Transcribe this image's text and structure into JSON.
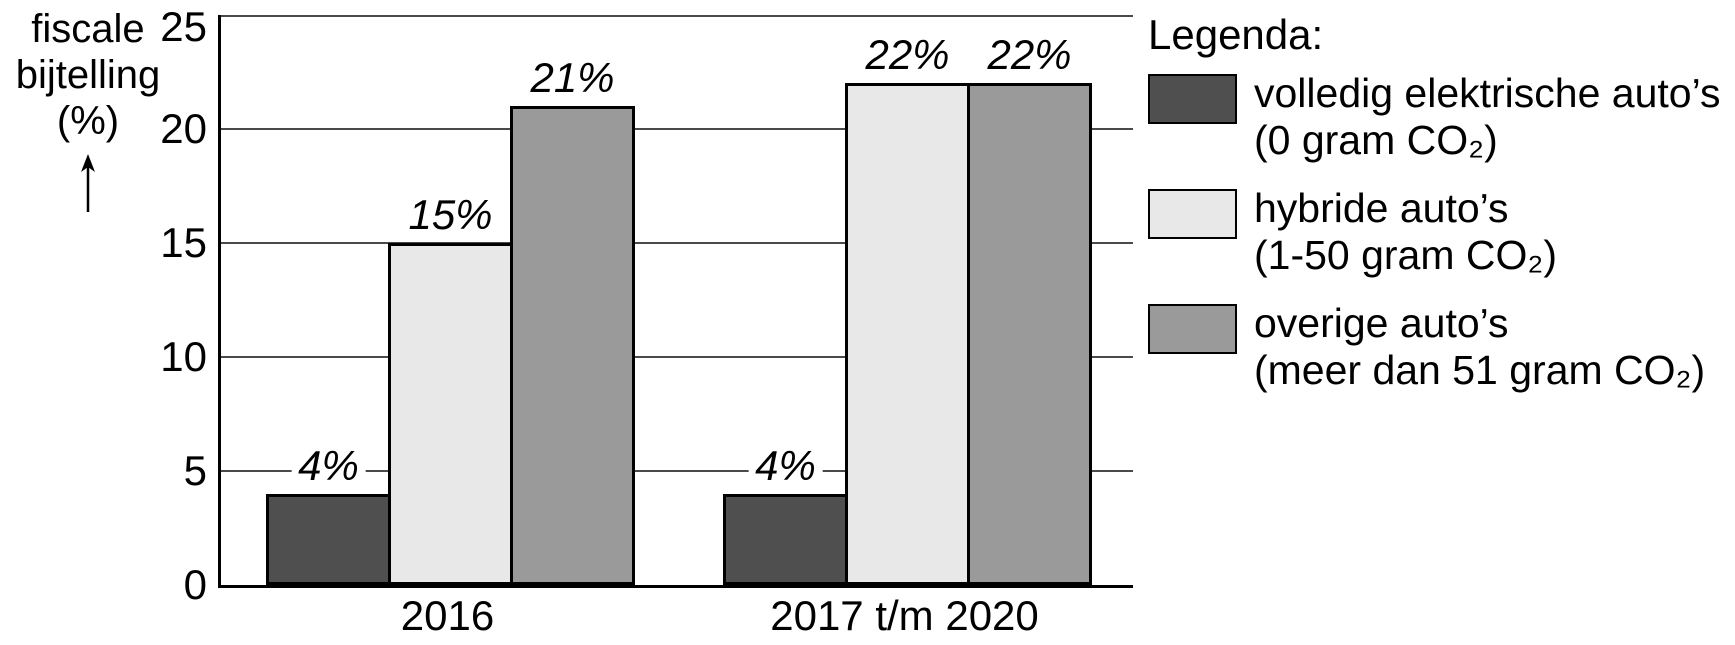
{
  "chart_data": {
    "type": "bar",
    "title": "",
    "ylabel": "fiscale bijtelling (%)",
    "ylabel_lines": [
      "fiscale",
      "bijtelling",
      "(%)"
    ],
    "xlabel": "",
    "ylim": [
      0,
      25
    ],
    "yticks": [
      "0",
      "5",
      "10",
      "15",
      "20",
      "25"
    ],
    "gridline_values": [
      5,
      10,
      15,
      20,
      25
    ],
    "grid": true,
    "legend_position": "right",
    "categories": [
      "2016",
      "2017 t/m 2020"
    ],
    "series": [
      {
        "name": "volledig elektrische auto’s (0 gram CO₂)",
        "values": [
          4,
          4
        ],
        "data_labels": [
          "4%",
          "4%"
        ],
        "color": "#4F4F4F"
      },
      {
        "name": "hybride auto’s (1-50 gram CO₂)",
        "values": [
          15,
          22
        ],
        "data_labels": [
          "15%",
          "22%"
        ],
        "color": "#E8E8E8"
      },
      {
        "name": "overige auto’s (meer dan 51 gram CO₂)",
        "values": [
          21,
          22
        ],
        "data_labels": [
          "21%",
          "22%"
        ],
        "color": "#9A9A9A"
      }
    ],
    "colors": {
      "background": "#FFFFFF",
      "axis": "#000000",
      "gridline": "#4A4A4A",
      "bar_border": "#000000",
      "text": "#000000"
    }
  },
  "legend": {
    "title": "Legenda:",
    "items": [
      {
        "swatch_color": "#4F4F4F",
        "line1": "volledig elektrische auto’s",
        "line2": "(0 gram CO₂)"
      },
      {
        "swatch_color": "#E8E8E8",
        "line1": "hybride auto’s",
        "line2": "(1-50 gram CO₂)"
      },
      {
        "swatch_color": "#9A9A9A",
        "line1": "overige auto’s",
        "line2": "(meer dan 51 gram CO₂)"
      }
    ]
  }
}
